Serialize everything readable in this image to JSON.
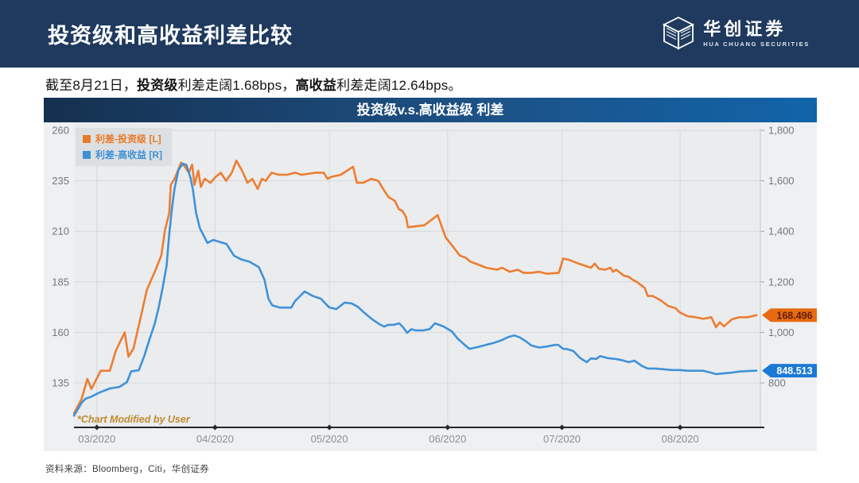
{
  "header": {
    "title": "投资级和高收益利差比较",
    "logo": {
      "name": "华创证券",
      "subtitle": "HUA CHUANG SECURITIES"
    }
  },
  "summary": {
    "segments": [
      {
        "text": "截至8月21日，",
        "bold": false
      },
      {
        "text": "投资级",
        "bold": true
      },
      {
        "text": "利差走阔1.68bps，",
        "bold": false
      },
      {
        "text": "高收益",
        "bold": true
      },
      {
        "text": "利差走阔12.64bps。",
        "bold": false
      }
    ]
  },
  "chart": {
    "title": "投资级v.s.高收益级 利差",
    "note": "*Chart Modified by User"
  },
  "chart_data": {
    "type": "line",
    "title": "投资级v.s.高收益级 利差",
    "grid": true,
    "legend_position": "top-left",
    "x_ticks": [
      "03/2020",
      "04/2020",
      "05/2020",
      "06/2020",
      "07/2020",
      "08/2020"
    ],
    "x_tick_days": [
      6,
      37,
      67,
      98,
      128,
      159
    ],
    "x_domain_days": [
      0,
      179
    ],
    "left_axis": {
      "ticks": [
        "260",
        "235",
        "210",
        "185",
        "160",
        "135"
      ],
      "range": [
        135,
        260
      ]
    },
    "right_axis": {
      "ticks": [
        "1,800",
        "1,600",
        "1,400",
        "1,200",
        "1,000",
        "800"
      ],
      "range": [
        800,
        1800
      ]
    },
    "legend": [
      {
        "label": "利差-投资级 [L]",
        "color": "#e87b28"
      },
      {
        "label": "利差-高收益 [R]",
        "color": "#4090d4"
      }
    ],
    "note": "*Chart Modified by User",
    "note_color": "#c08a2e",
    "series": [
      {
        "name": "利差-投资级",
        "axis": "left",
        "color": "#ed7d31",
        "end_label": "168.496",
        "tag_color": "#e86a10",
        "tag_text_color": "#5c1d00",
        "points": [
          [
            0,
            120
          ],
          [
            2,
            127
          ],
          [
            3.5,
            137
          ],
          [
            4.6,
            132
          ],
          [
            7,
            141
          ],
          [
            9.4,
            141
          ],
          [
            11,
            151
          ],
          [
            13.3,
            160
          ],
          [
            14.3,
            148
          ],
          [
            15.6,
            152
          ],
          [
            17.7,
            169
          ],
          [
            19.1,
            181
          ],
          [
            21.2,
            190
          ],
          [
            22.9,
            198
          ],
          [
            23.9,
            211
          ],
          [
            25,
            219
          ],
          [
            25.4,
            233
          ],
          [
            26.4,
            236
          ],
          [
            28.1,
            244
          ],
          [
            29.1,
            242
          ],
          [
            30.1,
            239
          ],
          [
            31,
            243
          ],
          [
            31.6,
            233
          ],
          [
            32.6,
            240
          ],
          [
            33.3,
            232
          ],
          [
            34.3,
            236
          ],
          [
            35.8,
            234
          ],
          [
            37.2,
            237
          ],
          [
            38.5,
            239
          ],
          [
            39.9,
            235
          ],
          [
            41.4,
            239
          ],
          [
            42.6,
            245
          ],
          [
            44.1,
            240
          ],
          [
            45.5,
            234
          ],
          [
            46.8,
            236
          ],
          [
            48.2,
            231
          ],
          [
            49.3,
            236
          ],
          [
            50.3,
            235
          ],
          [
            51.8,
            239
          ],
          [
            53.8,
            238
          ],
          [
            55.9,
            238
          ],
          [
            58,
            239
          ],
          [
            59.7,
            238
          ],
          [
            63.4,
            239
          ],
          [
            65.5,
            239
          ],
          [
            66.5,
            236
          ],
          [
            67.6,
            237
          ],
          [
            70,
            238
          ],
          [
            73.2,
            242
          ],
          [
            74.2,
            234
          ],
          [
            75.9,
            234
          ],
          [
            78,
            236
          ],
          [
            79.8,
            235
          ],
          [
            81.1,
            231
          ],
          [
            82.5,
            227
          ],
          [
            84.2,
            225
          ],
          [
            85.2,
            221
          ],
          [
            86.2,
            220
          ],
          [
            87.1,
            217
          ],
          [
            87.6,
            212
          ],
          [
            91.9,
            213
          ],
          [
            95.4,
            218
          ],
          [
            97.5,
            207
          ],
          [
            99.6,
            202
          ],
          [
            101.2,
            198
          ],
          [
            102.7,
            197
          ],
          [
            104,
            195
          ],
          [
            105.4,
            194
          ],
          [
            108.1,
            192
          ],
          [
            111,
            191
          ],
          [
            112.3,
            192
          ],
          [
            114.3,
            190
          ],
          [
            116.4,
            191
          ],
          [
            117.9,
            189.5
          ],
          [
            120,
            189.5
          ],
          [
            122,
            190
          ],
          [
            124.1,
            189
          ],
          [
            127.2,
            189.5
          ],
          [
            128.3,
            196.5
          ],
          [
            129.7,
            196
          ],
          [
            132.4,
            194
          ],
          [
            135.6,
            192
          ],
          [
            136.6,
            194
          ],
          [
            137.7,
            191.5
          ],
          [
            139.3,
            191
          ],
          [
            140.7,
            192
          ],
          [
            141.4,
            190
          ],
          [
            142.2,
            191
          ],
          [
            144.3,
            188
          ],
          [
            145.5,
            187.5
          ],
          [
            146.6,
            186
          ],
          [
            147.6,
            185
          ],
          [
            149.7,
            182
          ],
          [
            150.5,
            178
          ],
          [
            151.8,
            178
          ],
          [
            153.8,
            176
          ],
          [
            155.9,
            173
          ],
          [
            157.8,
            172
          ],
          [
            158.8,
            170
          ],
          [
            160.9,
            168
          ],
          [
            163,
            167.5
          ],
          [
            165.1,
            166.7
          ],
          [
            167.2,
            167.5
          ],
          [
            168.4,
            162.5
          ],
          [
            169.4,
            165
          ],
          [
            170.5,
            163
          ],
          [
            172.6,
            166.5
          ],
          [
            174.6,
            167.5
          ],
          [
            176.7,
            167.5
          ],
          [
            179,
            168.5
          ]
        ]
      },
      {
        "name": "利差-高收益",
        "axis": "right",
        "color": "#3f92d8",
        "end_label": "848.513",
        "tag_color": "#1b79d6",
        "tag_text_color": "#ffffff",
        "points": [
          [
            0,
            670
          ],
          [
            2,
            721
          ],
          [
            3,
            737
          ],
          [
            4.6,
            746
          ],
          [
            6.7,
            762
          ],
          [
            9.4,
            778
          ],
          [
            11.9,
            784
          ],
          [
            13.9,
            803
          ],
          [
            15,
            846
          ],
          [
            17,
            850
          ],
          [
            18.5,
            909
          ],
          [
            19.8,
            972
          ],
          [
            21.2,
            1035
          ],
          [
            22.2,
            1097
          ],
          [
            23.3,
            1180
          ],
          [
            24.3,
            1265
          ],
          [
            25,
            1390
          ],
          [
            25.8,
            1505
          ],
          [
            26.4,
            1570
          ],
          [
            27.4,
            1642
          ],
          [
            28.5,
            1668
          ],
          [
            29.5,
            1663
          ],
          [
            30.6,
            1610
          ],
          [
            31.2,
            1564
          ],
          [
            32,
            1475
          ],
          [
            33,
            1413
          ],
          [
            35,
            1354
          ],
          [
            36.5,
            1366
          ],
          [
            40,
            1350
          ],
          [
            42,
            1303
          ],
          [
            44,
            1288
          ],
          [
            46,
            1280
          ],
          [
            48.5,
            1258
          ],
          [
            50,
            1207
          ],
          [
            51,
            1133
          ],
          [
            52,
            1107
          ],
          [
            54,
            1098
          ],
          [
            57,
            1098
          ],
          [
            58,
            1124
          ],
          [
            60.5,
            1162
          ],
          [
            62.5,
            1145
          ],
          [
            64.8,
            1133
          ],
          [
            66.9,
            1099
          ],
          [
            68.8,
            1092
          ],
          [
            71,
            1118
          ],
          [
            72.9,
            1114
          ],
          [
            74.5,
            1101
          ],
          [
            76.2,
            1077
          ],
          [
            78.3,
            1051
          ],
          [
            80.4,
            1030
          ],
          [
            81.4,
            1023
          ],
          [
            82.4,
            1030
          ],
          [
            83.9,
            1030
          ],
          [
            85.3,
            1036
          ],
          [
            86.4,
            1019
          ],
          [
            87.4,
            998
          ],
          [
            88.5,
            1013
          ],
          [
            89.5,
            1008
          ],
          [
            91.6,
            1008
          ],
          [
            93.3,
            1013
          ],
          [
            94.7,
            1036
          ],
          [
            95.8,
            1030
          ],
          [
            97,
            1023
          ],
          [
            99.1,
            1004
          ],
          [
            100.6,
            976
          ],
          [
            102,
            957
          ],
          [
            103.7,
            935
          ],
          [
            106,
            942
          ],
          [
            108,
            950
          ],
          [
            110,
            958
          ],
          [
            112,
            968
          ],
          [
            114,
            982
          ],
          [
            115.5,
            988
          ],
          [
            117,
            980
          ],
          [
            118.5,
            965
          ],
          [
            120,
            948
          ],
          [
            122,
            940
          ],
          [
            124,
            944
          ],
          [
            126,
            950
          ],
          [
            127,
            951
          ],
          [
            128.3,
            935
          ],
          [
            129.3,
            934
          ],
          [
            131,
            926
          ],
          [
            132.8,
            898
          ],
          [
            134.5,
            882
          ],
          [
            135.6,
            897
          ],
          [
            137,
            895
          ],
          [
            138,
            906
          ],
          [
            140,
            898
          ],
          [
            142,
            895
          ],
          [
            144,
            889
          ],
          [
            145.5,
            882
          ],
          [
            147,
            888
          ],
          [
            149,
            867
          ],
          [
            150.5,
            857
          ],
          [
            152.5,
            857
          ],
          [
            154.7,
            854
          ],
          [
            156.8,
            851
          ],
          [
            158.8,
            851
          ],
          [
            161,
            848
          ],
          [
            163,
            848
          ],
          [
            165,
            848
          ],
          [
            167,
            841
          ],
          [
            168.4,
            835
          ],
          [
            170.5,
            838
          ],
          [
            172.6,
            841
          ],
          [
            174.6,
            845
          ],
          [
            176.7,
            847
          ],
          [
            179,
            848.5
          ]
        ]
      }
    ]
  },
  "footer": {
    "source": "资料来源：Bloomberg，Citi，华创证券"
  }
}
